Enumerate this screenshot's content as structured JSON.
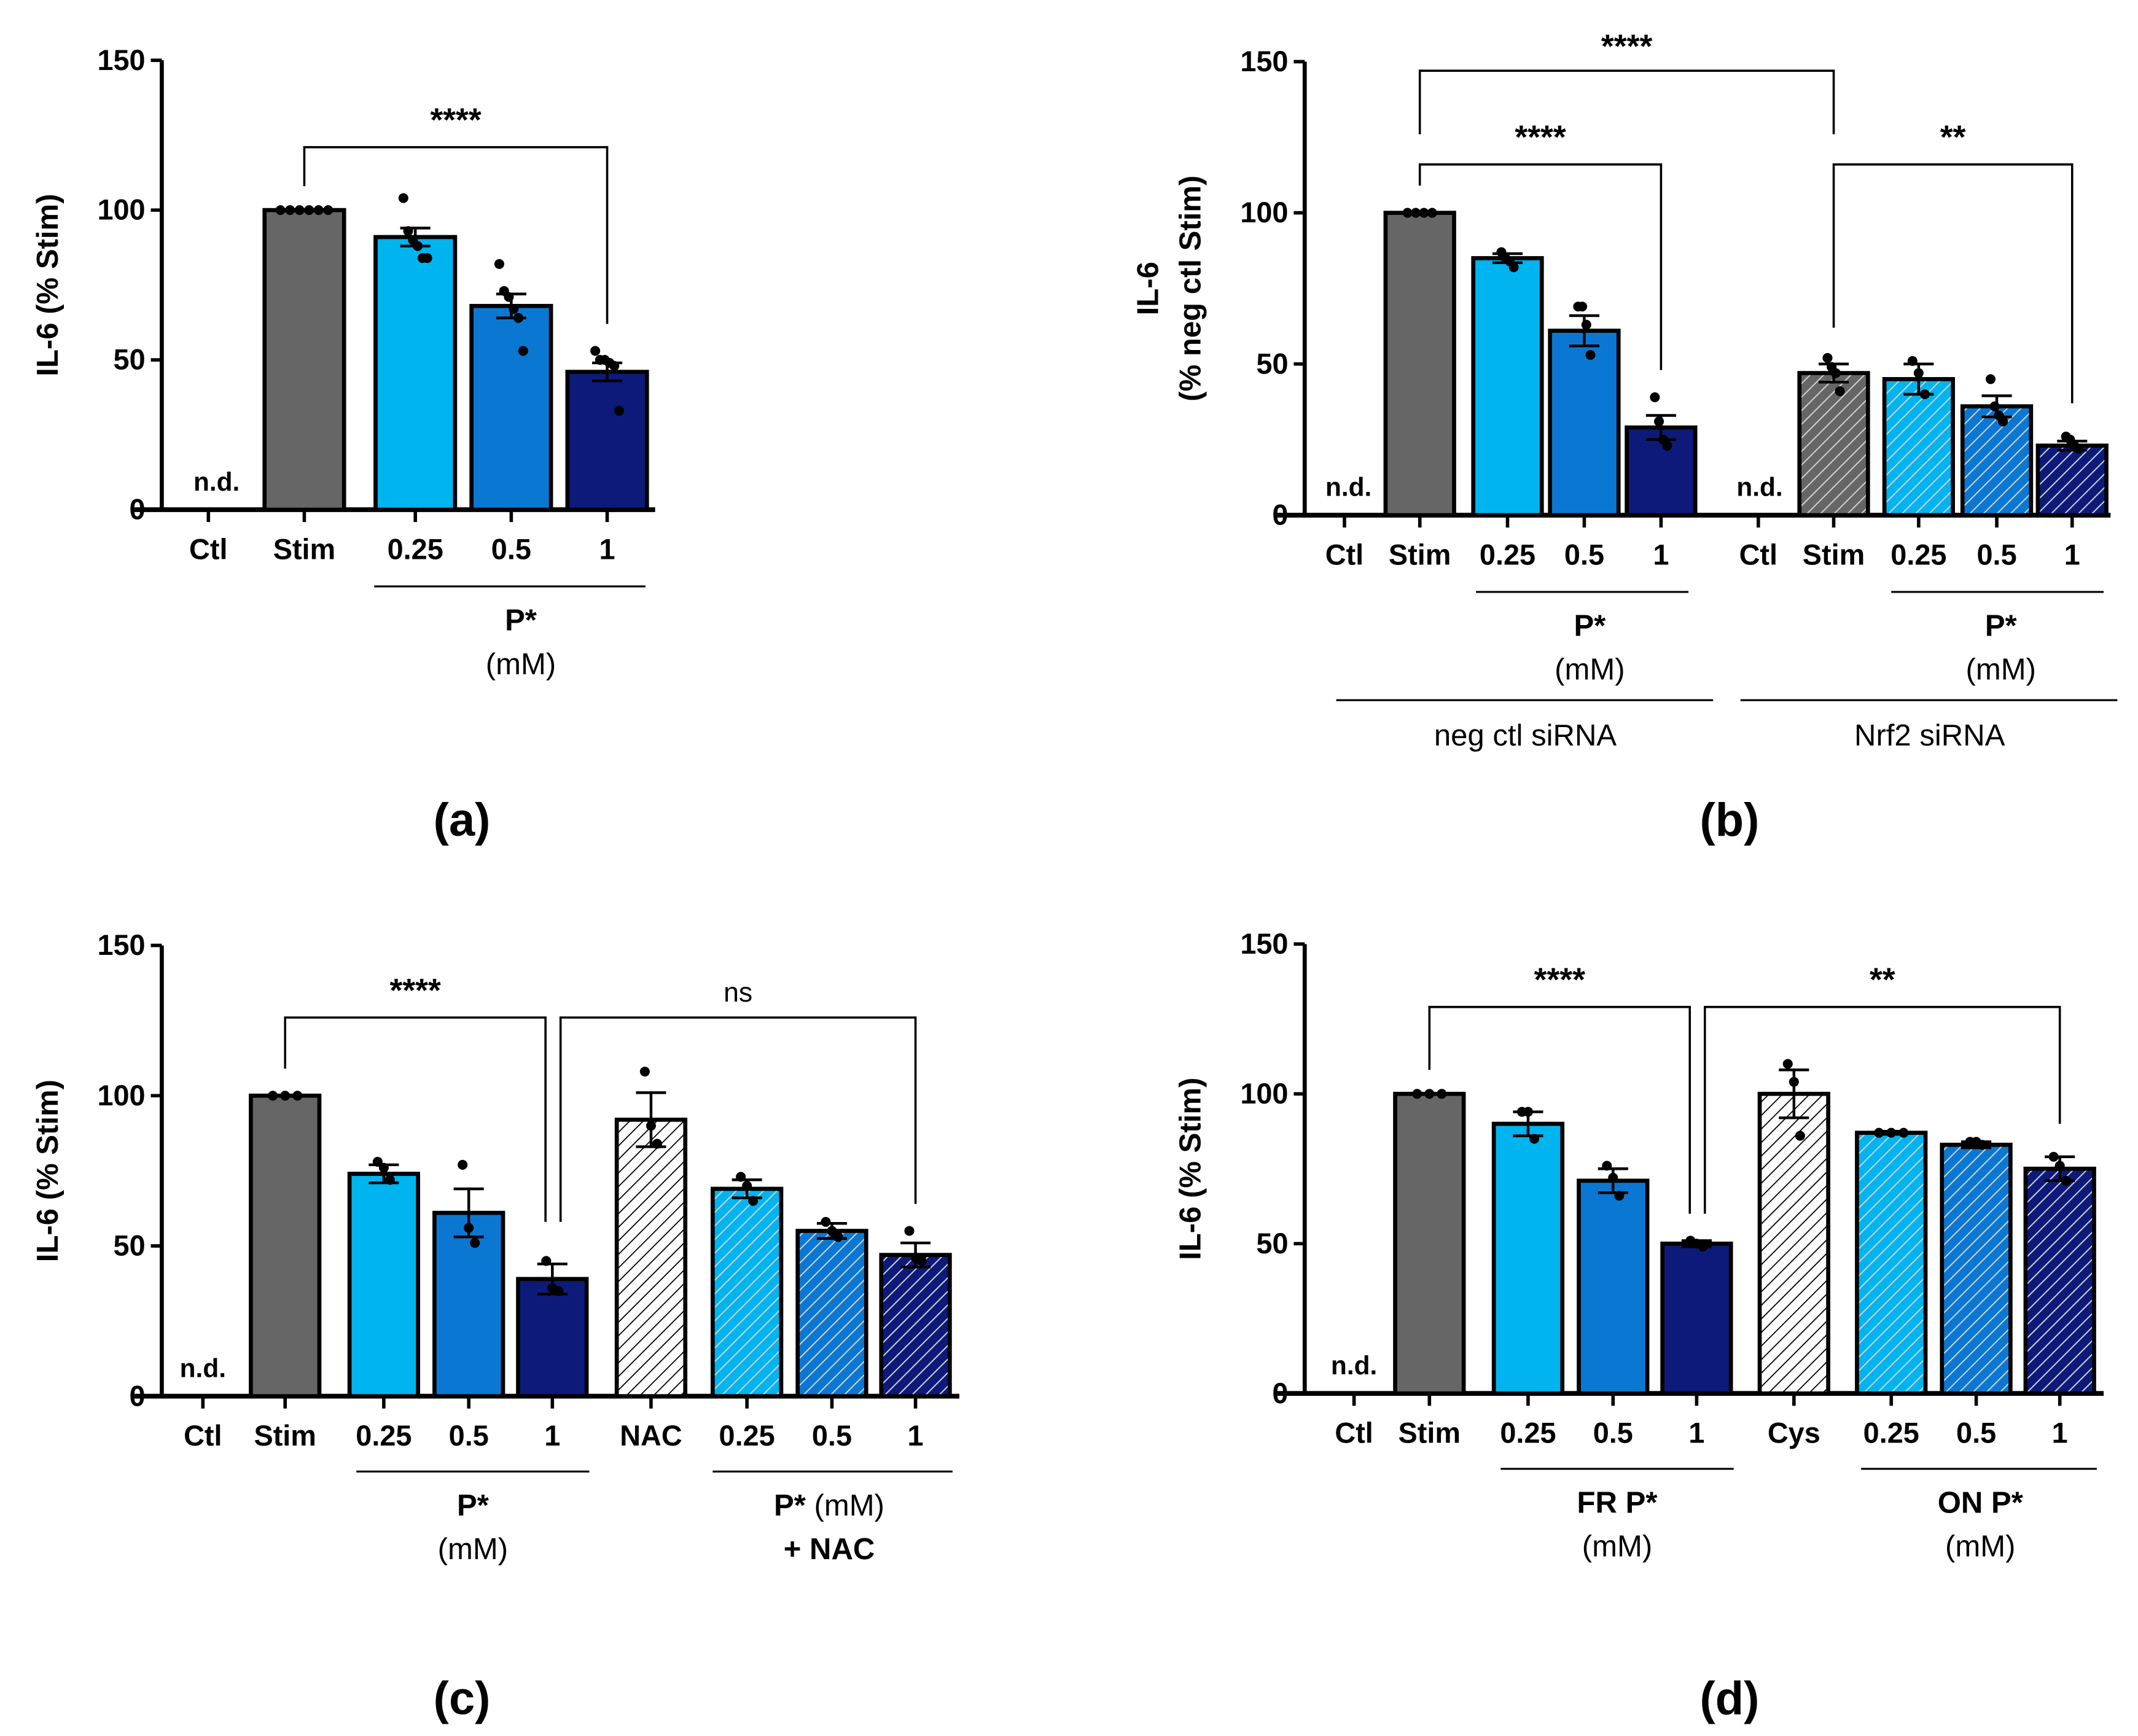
{
  "colors": {
    "gray": "#666666",
    "light": "#00b4f0",
    "medium": "#0a78d2",
    "dark": "#0d1a7a",
    "white": "#ffffff",
    "stripe": "#d0d0d0",
    "black": "#000000"
  },
  "chart_data": [
    {
      "type": "bar",
      "panel_label": "(a)",
      "ylabel": [
        "IL-6 (% Stim)"
      ],
      "ylim": [
        0,
        150
      ],
      "yticks": [
        "0",
        "50",
        "100",
        "150"
      ],
      "nd_label": "n.d.",
      "bars": [
        {
          "label": "Ctl",
          "value": null,
          "nd": true
        },
        {
          "label": "Stim",
          "value": 100,
          "sem": 0,
          "points": [
            100,
            100,
            100,
            100,
            100,
            100
          ],
          "color": "gray",
          "hatched": false
        },
        {
          "label": "0.25",
          "value": 91,
          "sem": 3,
          "points": [
            104,
            93,
            90,
            88,
            84,
            84
          ],
          "color": "light",
          "hatched": false
        },
        {
          "label": "0.5",
          "value": 68,
          "sem": 4,
          "points": [
            82,
            73,
            71,
            67,
            64,
            53
          ],
          "color": "medium",
          "hatched": false
        },
        {
          "label": "1",
          "value": 46,
          "sem": 3,
          "points": [
            53,
            50,
            50,
            49,
            48,
            33
          ],
          "color": "dark",
          "hatched": false
        }
      ],
      "brackets": [
        {
          "from": "Stim",
          "to": "1",
          "label": "****"
        }
      ],
      "group_labels": [
        {
          "lines": [
            "P*",
            "(mM)"
          ]
        }
      ]
    },
    {
      "type": "bar",
      "panel_label": "(b)",
      "ylabel": [
        "IL-6",
        "(% neg ctl Stim)"
      ],
      "ylim": [
        0,
        150
      ],
      "yticks": [
        "0",
        "50",
        "100",
        "150"
      ],
      "nd_label": "n.d.",
      "bars": [
        {
          "label": "Ctl",
          "value": null,
          "nd": true
        },
        {
          "label": "Stim",
          "value": 100,
          "sem": 0,
          "points": [
            100,
            100,
            100,
            100
          ],
          "color": "gray",
          "hatched": false
        },
        {
          "label": "0.25",
          "value": 85,
          "sem": 1.5,
          "points": [
            87,
            85,
            84,
            82
          ],
          "color": "light",
          "hatched": false
        },
        {
          "label": "0.5",
          "value": 61,
          "sem": 5,
          "points": [
            69,
            69,
            63,
            53
          ],
          "color": "medium",
          "hatched": false
        },
        {
          "label": "1",
          "value": 29,
          "sem": 4,
          "points": [
            39,
            31,
            25,
            23
          ],
          "color": "dark",
          "hatched": false
        },
        {
          "label": "Ctl",
          "value": null,
          "nd": true
        },
        {
          "label": "Stim",
          "value": 47,
          "sem": 3,
          "points": [
            52,
            49,
            47,
            41
          ],
          "color": "gray",
          "hatched": true
        },
        {
          "label": "0.25",
          "value": 45,
          "sem": 5,
          "points": [
            51,
            47,
            40
          ],
          "color": "light",
          "hatched": true
        },
        {
          "label": "0.5",
          "value": 36,
          "sem": 3.5,
          "points": [
            45,
            36,
            33,
            31
          ],
          "color": "medium",
          "hatched": true
        },
        {
          "label": "1",
          "value": 23,
          "sem": 1.5,
          "points": [
            26,
            25,
            23,
            22
          ],
          "color": "dark",
          "hatched": true
        }
      ],
      "brackets": [
        {
          "from": "neg ctl Stim",
          "to": "Nrf2 Stim",
          "label": "****"
        },
        {
          "from": "neg ctl Stim",
          "to": "neg ctl 1",
          "label": "****"
        },
        {
          "from": "Nrf2 Stim",
          "to": "Nrf2 1",
          "label": "**"
        }
      ],
      "group_labels": [
        {
          "lines": [
            "P*",
            "(mM)"
          ]
        },
        {
          "lines": [
            "P*",
            "(mM)"
          ]
        }
      ],
      "outer_groups": [
        "neg ctl siRNA",
        "Nrf2 siRNA"
      ]
    },
    {
      "type": "bar",
      "panel_label": "(c)",
      "ylabel": [
        "IL-6 (% Stim)"
      ],
      "ylim": [
        0,
        150
      ],
      "yticks": [
        "0",
        "50",
        "100",
        "150"
      ],
      "nd_label": "n.d.",
      "bars": [
        {
          "label": "Ctl",
          "value": null,
          "nd": true
        },
        {
          "label": "Stim",
          "value": 100,
          "sem": 0,
          "points": [
            100,
            100,
            100
          ],
          "color": "gray",
          "hatched": false
        },
        {
          "label": "0.25",
          "value": 74,
          "sem": 3,
          "points": [
            78,
            76,
            72
          ],
          "color": "light",
          "hatched": false
        },
        {
          "label": "0.5",
          "value": 61,
          "sem": 8,
          "points": [
            77,
            56,
            51
          ],
          "color": "medium",
          "hatched": false
        },
        {
          "label": "1",
          "value": 39,
          "sem": 5,
          "points": [
            45,
            36,
            35
          ],
          "color": "dark",
          "hatched": false
        },
        {
          "label": "NAC",
          "value": 92,
          "sem": 9,
          "points": [
            108,
            90,
            84
          ],
          "color": "white",
          "hatched": true
        },
        {
          "label": "0.25",
          "value": 69,
          "sem": 3,
          "points": [
            73,
            70,
            65
          ],
          "color": "light",
          "hatched": true
        },
        {
          "label": "0.5",
          "value": 55,
          "sem": 2.5,
          "points": [
            58,
            55,
            53
          ],
          "color": "medium",
          "hatched": true
        },
        {
          "label": "1",
          "value": 47,
          "sem": 4,
          "points": [
            55,
            46,
            45
          ],
          "color": "dark",
          "hatched": true
        }
      ],
      "brackets": [
        {
          "from": "Stim",
          "to": "1",
          "label": "****"
        },
        {
          "from": "1",
          "to": "NAC + 1",
          "label": "ns"
        }
      ],
      "group_labels": [
        {
          "lines": [
            "P*",
            "(mM)"
          ]
        },
        {
          "lines": [
            "P* (mM)",
            "+ NAC"
          ]
        }
      ]
    },
    {
      "type": "bar",
      "panel_label": "(d)",
      "ylabel": [
        "IL-6 (% Stim)"
      ],
      "ylim": [
        0,
        150
      ],
      "yticks": [
        "0",
        "50",
        "100",
        "150"
      ],
      "nd_label": "n.d.",
      "bars": [
        {
          "label": "Ctl",
          "value": null,
          "nd": true
        },
        {
          "label": "Stim",
          "value": 100,
          "sem": 0,
          "points": [
            100,
            100,
            100
          ],
          "color": "gray",
          "hatched": false
        },
        {
          "label": "0.25",
          "value": 90,
          "sem": 4,
          "points": [
            94,
            94,
            85
          ],
          "color": "light",
          "hatched": false
        },
        {
          "label": "0.5",
          "value": 71,
          "sem": 4,
          "points": [
            76,
            72,
            66
          ],
          "color": "medium",
          "hatched": false
        },
        {
          "label": "1",
          "value": 50,
          "sem": 1,
          "points": [
            51,
            50,
            49
          ],
          "color": "dark",
          "hatched": false
        },
        {
          "label": "Cys",
          "value": 100,
          "sem": 8,
          "points": [
            110,
            104,
            86
          ],
          "color": "white",
          "hatched": true
        },
        {
          "label": "0.25",
          "value": 87,
          "sem": 0.5,
          "points": [
            87,
            87,
            87
          ],
          "color": "light",
          "hatched": true
        },
        {
          "label": "0.5",
          "value": 83,
          "sem": 1,
          "points": [
            84,
            84,
            83
          ],
          "color": "medium",
          "hatched": true
        },
        {
          "label": "1",
          "value": 75,
          "sem": 4,
          "points": [
            79,
            76,
            71
          ],
          "color": "dark",
          "hatched": true
        }
      ],
      "brackets": [
        {
          "from": "Stim",
          "to": "FR 1",
          "label": "****"
        },
        {
          "from": "FR 1",
          "to": "ON 1",
          "label": "**"
        }
      ],
      "group_labels": [
        {
          "lines": [
            "FR P*",
            "(mM)"
          ]
        },
        {
          "lines": [
            "ON P*",
            "(mM)"
          ]
        }
      ]
    }
  ]
}
